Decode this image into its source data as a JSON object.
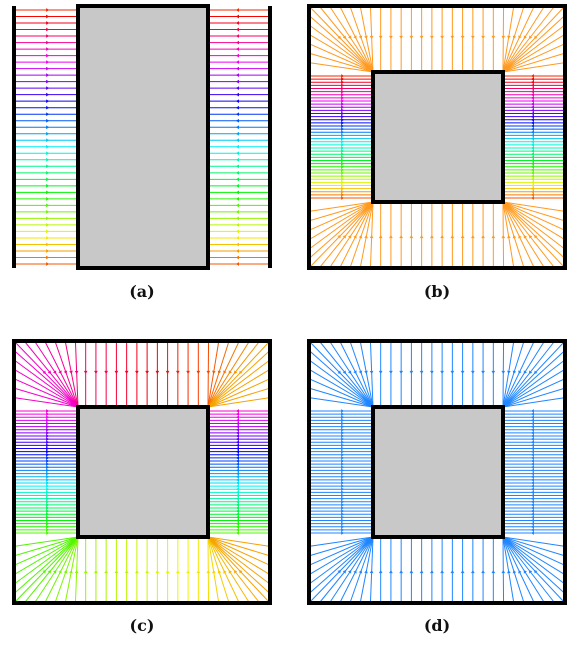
{
  "panels": [
    {
      "id": "a",
      "label": "(a)",
      "mode": "strip",
      "palette": "rainbow-vertical"
    },
    {
      "id": "b",
      "label": "(b)",
      "mode": "box",
      "palette": "rainbow-sides-orange-ends"
    },
    {
      "id": "c",
      "label": "(c)",
      "mode": "box",
      "palette": "rainbow-around"
    },
    {
      "id": "d",
      "label": "(d)",
      "mode": "box",
      "palette": "single-blue"
    }
  ],
  "colors": {
    "obstacle_fill": "#c8c8c8",
    "border": "#000000",
    "orange": "#ff9a1f",
    "blue": "#1f86ff"
  }
}
